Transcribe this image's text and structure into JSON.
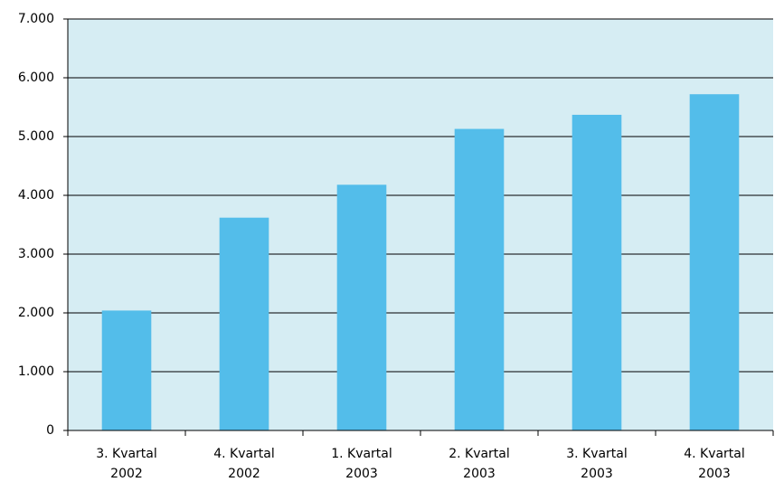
{
  "chart_data": {
    "type": "bar",
    "categories": [
      [
        "3. Kvartal",
        "2002"
      ],
      [
        "4. Kvartal",
        "2002"
      ],
      [
        "1. Kvartal",
        "2003"
      ],
      [
        "2. Kvartal",
        "2003"
      ],
      [
        "3. Kvartal",
        "2003"
      ],
      [
        "4. Kvartal",
        "2003"
      ]
    ],
    "values": [
      2040,
      3620,
      4180,
      5130,
      5370,
      5720
    ],
    "color": "#53bdea",
    "ylim": [
      0,
      7000
    ],
    "yticks": [
      0,
      {
        "value": 1000,
        "label": "1.000"
      },
      {
        "value": 2000,
        "label": "2.000"
      },
      {
        "value": 3000,
        "label": "3.000"
      },
      {
        "value": 4000,
        "label": "4.000"
      },
      {
        "value": 5000,
        "label": "5.000"
      },
      {
        "value": 6000,
        "label": "6.000"
      },
      {
        "value": 7000,
        "label": "7.000"
      }
    ],
    "grid": true
  }
}
